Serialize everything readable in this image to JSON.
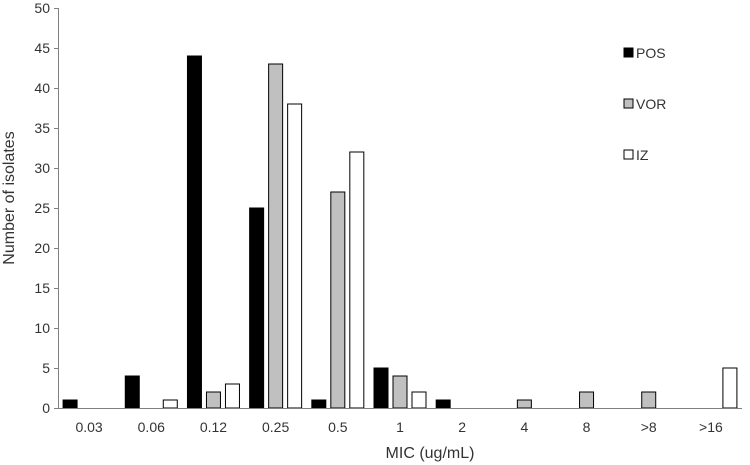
{
  "chart_data": {
    "type": "bar",
    "title": "",
    "xlabel": "MIC (ug/mL)",
    "ylabel": "Number of isolates",
    "ylim": [
      0,
      50
    ],
    "yticks": [
      0,
      5,
      10,
      15,
      20,
      25,
      30,
      35,
      40,
      45,
      50
    ],
    "grid": false,
    "legend_position": "top-right",
    "categories": [
      "0.03",
      "0.06",
      "0.12",
      "0.25",
      "0.5",
      "1",
      "2",
      "4",
      "8",
      ">8",
      ">16"
    ],
    "series": [
      {
        "name": "POS",
        "color": "#000000",
        "values": [
          1,
          4,
          44,
          25,
          1,
          5,
          1,
          0,
          0,
          0,
          0
        ]
      },
      {
        "name": "VOR",
        "color": "#c0c0c0",
        "values": [
          0,
          0,
          2,
          43,
          27,
          4,
          0,
          1,
          2,
          2,
          0
        ]
      },
      {
        "name": "IZ",
        "color": "#ffffff",
        "values": [
          0,
          1,
          3,
          38,
          32,
          2,
          0,
          0,
          0,
          0,
          5
        ]
      }
    ]
  }
}
